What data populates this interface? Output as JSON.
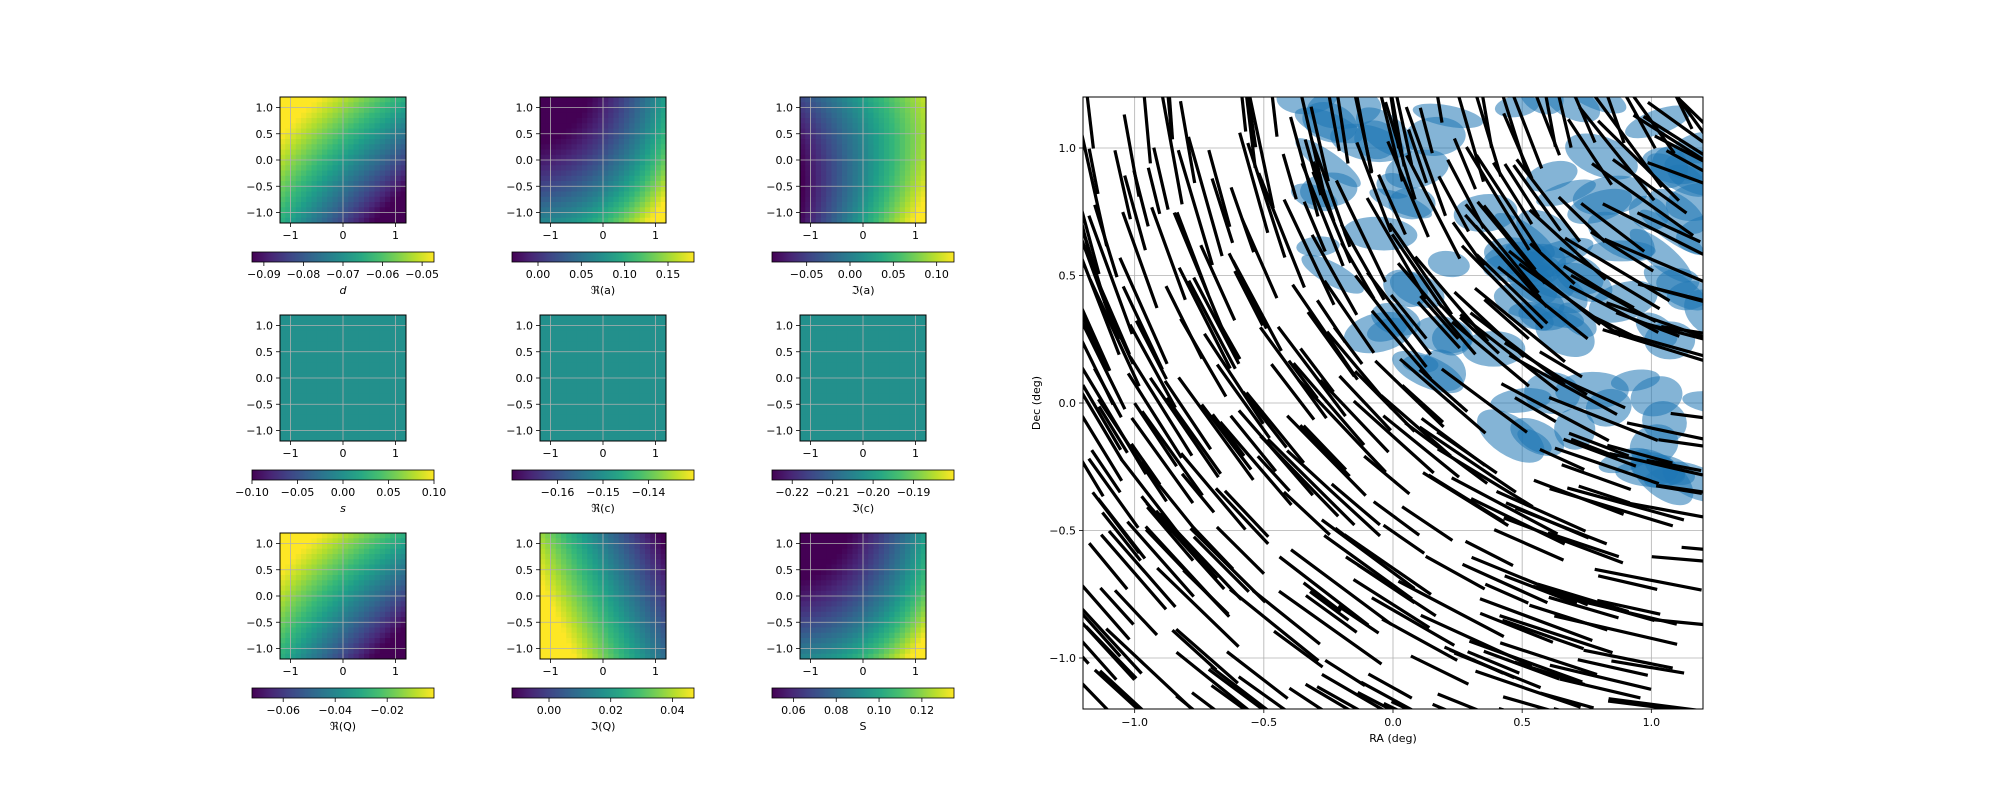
{
  "chart_data": [
    {
      "type": "heatmap",
      "field": "d",
      "colorbar_label": "d",
      "colorbar_italic": true,
      "xticks": [
        "−1",
        "0",
        "1"
      ],
      "yticks": [
        "1.0",
        "0.5",
        "0.0",
        "−0.5",
        "−1.0"
      ],
      "colorbar_range": [
        -0.093,
        -0.047
      ],
      "colorbar_ticks": [
        {
          "v": -0.09,
          "t": "−0.09"
        },
        {
          "v": -0.08,
          "t": "−0.08"
        },
        {
          "v": -0.07,
          "t": "−0.07"
        },
        {
          "v": -0.06,
          "t": "−0.06"
        },
        {
          "v": -0.05,
          "t": "−0.05"
        }
      ],
      "pattern": "diag-tl-high"
    },
    {
      "type": "heatmap",
      "field": "Re(a)",
      "colorbar_label": "ℜ(a)",
      "xticks": [
        "−1",
        "0",
        "1"
      ],
      "yticks": [
        "1.0",
        "0.5",
        "0.0",
        "−0.5",
        "−1.0"
      ],
      "colorbar_range": [
        -0.03,
        0.18
      ],
      "colorbar_ticks": [
        {
          "v": 0.0,
          "t": "0.00"
        },
        {
          "v": 0.05,
          "t": "0.05"
        },
        {
          "v": 0.1,
          "t": "0.10"
        },
        {
          "v": 0.15,
          "t": "0.15"
        }
      ],
      "pattern": "bottom-right-high"
    },
    {
      "type": "heatmap",
      "field": "Im(a)",
      "colorbar_label": "ℑ(a)",
      "xticks": [
        "−1",
        "0",
        "1"
      ],
      "yticks": [
        "1.0",
        "0.5",
        "0.0",
        "−0.5",
        "−1.0"
      ],
      "colorbar_range": [
        -0.09,
        0.12
      ],
      "colorbar_ticks": [
        {
          "v": -0.05,
          "t": "−0.05"
        },
        {
          "v": 0.0,
          "t": "0.00"
        },
        {
          "v": 0.05,
          "t": "0.05"
        },
        {
          "v": 0.1,
          "t": "0.10"
        }
      ],
      "pattern": "right-high"
    },
    {
      "type": "heatmap",
      "field": "s",
      "colorbar_label": "s",
      "colorbar_italic": true,
      "xticks": [
        "−1",
        "0",
        "1"
      ],
      "yticks": [
        "1.0",
        "0.5",
        "0.0",
        "−0.5",
        "−1.0"
      ],
      "colorbar_range": [
        -0.1,
        0.1
      ],
      "colorbar_ticks": [
        {
          "v": -0.1,
          "t": "−0.10"
        },
        {
          "v": -0.05,
          "t": "−0.05"
        },
        {
          "v": 0.0,
          "t": "0.00"
        },
        {
          "v": 0.05,
          "t": "0.05"
        },
        {
          "v": 0.1,
          "t": "0.10"
        }
      ],
      "pattern": "uniform"
    },
    {
      "type": "heatmap",
      "field": "Re(c)",
      "colorbar_label": "ℜ(c)",
      "xticks": [
        "−1",
        "0",
        "1"
      ],
      "yticks": [
        "1.0",
        "0.5",
        "0.0",
        "−0.5",
        "−1.0"
      ],
      "colorbar_range": [
        -0.17,
        -0.13
      ],
      "colorbar_ticks": [
        {
          "v": -0.16,
          "t": "−0.16"
        },
        {
          "v": -0.15,
          "t": "−0.15"
        },
        {
          "v": -0.14,
          "t": "−0.14"
        }
      ],
      "pattern": "uniform"
    },
    {
      "type": "heatmap",
      "field": "Im(c)",
      "colorbar_label": "ℑ(c)",
      "xticks": [
        "−1",
        "0",
        "1"
      ],
      "yticks": [
        "1.0",
        "0.5",
        "0.0",
        "−0.5",
        "−1.0"
      ],
      "colorbar_range": [
        -0.225,
        -0.18
      ],
      "colorbar_ticks": [
        {
          "v": -0.22,
          "t": "−0.22"
        },
        {
          "v": -0.21,
          "t": "−0.21"
        },
        {
          "v": -0.2,
          "t": "−0.20"
        },
        {
          "v": -0.19,
          "t": "−0.19"
        }
      ],
      "pattern": "uniform"
    },
    {
      "type": "heatmap",
      "field": "Re(Q)",
      "colorbar_label": "ℜ(Q)",
      "xticks": [
        "−1",
        "0",
        "1"
      ],
      "yticks": [
        "1.0",
        "0.5",
        "0.0",
        "−0.5",
        "−1.0"
      ],
      "colorbar_range": [
        -0.072,
        -0.002
      ],
      "colorbar_ticks": [
        {
          "v": -0.06,
          "t": "−0.06"
        },
        {
          "v": -0.04,
          "t": "−0.04"
        },
        {
          "v": -0.02,
          "t": "−0.02"
        }
      ],
      "pattern": "diag-tl-high"
    },
    {
      "type": "heatmap",
      "field": "Im(Q)",
      "colorbar_label": "ℑ(Q)",
      "xticks": [
        "−1",
        "0",
        "1"
      ],
      "yticks": [
        "1.0",
        "0.5",
        "0.0",
        "−0.5",
        "−1.0"
      ],
      "colorbar_range": [
        -0.012,
        0.047
      ],
      "colorbar_ticks": [
        {
          "v": 0.0,
          "t": "0.00"
        },
        {
          "v": 0.02,
          "t": "0.02"
        },
        {
          "v": 0.04,
          "t": "0.04"
        }
      ],
      "pattern": "bottom-left-high"
    },
    {
      "type": "heatmap",
      "field": "S",
      "colorbar_label": "S",
      "xticks": [
        "−1",
        "0",
        "1"
      ],
      "yticks": [
        "1.0",
        "0.5",
        "0.0",
        "−0.5",
        "−1.0"
      ],
      "colorbar_range": [
        0.05,
        0.135
      ],
      "colorbar_ticks": [
        {
          "v": 0.06,
          "t": "0.06"
        },
        {
          "v": 0.08,
          "t": "0.08"
        },
        {
          "v": 0.1,
          "t": "0.10"
        },
        {
          "v": 0.12,
          "t": "0.12"
        }
      ],
      "pattern": "bottom-right-high"
    },
    {
      "type": "scatter",
      "description_free": true,
      "xlabel": "RA (deg)",
      "ylabel": "Dec (deg)",
      "xlim": [
        -1.2,
        1.2
      ],
      "ylim": [
        -1.2,
        1.2
      ],
      "xticks": [
        {
          "v": -1.0,
          "t": "−1.0"
        },
        {
          "v": -0.5,
          "t": "−0.5"
        },
        {
          "v": 0.0,
          "t": "0.0"
        },
        {
          "v": 0.5,
          "t": "0.5"
        },
        {
          "v": 1.0,
          "t": "1.0"
        }
      ],
      "yticks": [
        {
          "v": 1.0,
          "t": "1.0"
        },
        {
          "v": 0.5,
          "t": "0.5"
        },
        {
          "v": 0.0,
          "t": "0.0"
        },
        {
          "v": -0.5,
          "t": "−0.5"
        },
        {
          "v": -1.0,
          "t": "−1.0"
        }
      ],
      "grid": true,
      "marker_color": "#1f77b4",
      "whisker_color": "#000000"
    }
  ]
}
